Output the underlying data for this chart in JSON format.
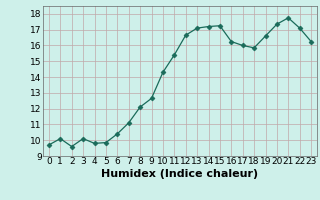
{
  "x": [
    0,
    1,
    2,
    3,
    4,
    5,
    6,
    7,
    8,
    9,
    10,
    11,
    12,
    13,
    14,
    15,
    16,
    17,
    18,
    19,
    20,
    21,
    22,
    23
  ],
  "y": [
    9.7,
    10.1,
    9.6,
    10.1,
    9.8,
    9.85,
    10.4,
    11.1,
    12.1,
    12.65,
    14.3,
    15.4,
    16.65,
    17.1,
    17.2,
    17.25,
    16.25,
    16.0,
    15.85,
    16.6,
    17.35,
    17.75,
    17.1,
    16.25
  ],
  "xlabel": "Humidex (Indice chaleur)",
  "xlim": [
    -0.5,
    23.5
  ],
  "ylim": [
    9.0,
    18.5
  ],
  "yticks": [
    9,
    10,
    11,
    12,
    13,
    14,
    15,
    16,
    17,
    18
  ],
  "xticks": [
    0,
    1,
    2,
    3,
    4,
    5,
    6,
    7,
    8,
    9,
    10,
    11,
    12,
    13,
    14,
    15,
    16,
    17,
    18,
    19,
    20,
    21,
    22,
    23
  ],
  "line_color": "#1a6b5a",
  "marker": "D",
  "marker_size": 2.5,
  "bg_color": "#cef0ea",
  "grid_color": "#c0a8a8",
  "tick_fontsize": 6.5,
  "xlabel_fontsize": 8
}
